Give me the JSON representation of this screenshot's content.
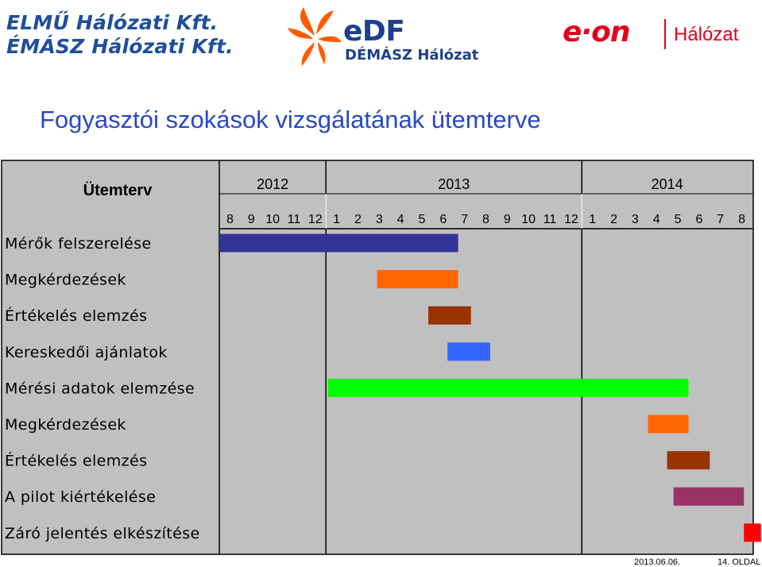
{
  "logos": {
    "elmu_line1": "ELMŰ Hálózati Kft.",
    "elmu_line2": "ÉMÁSZ Hálózati Kft.",
    "edf_name": "eDF",
    "edf_sub": "DÉMÁSZ Hálózat",
    "eon_name": "e·on",
    "eon_sub": "Hálózat"
  },
  "colors": {
    "title": "#2a47c4",
    "chart_bg": "#c0c0c0"
  },
  "chart_data": {
    "type": "gantt",
    "title": "Fogyasztói szokások vizsgálatának ütemterve",
    "row_header": "Ütemterv",
    "years": [
      {
        "label": "2012",
        "months": 5
      },
      {
        "label": "2013",
        "months": 12
      },
      {
        "label": "2014",
        "months": 8
      }
    ],
    "month_labels": [
      "8",
      "9",
      "10",
      "11",
      "12",
      "1",
      "2",
      "3",
      "4",
      "5",
      "6",
      "7",
      "8",
      "9",
      "10",
      "11",
      "12",
      "1",
      "2",
      "3",
      "4",
      "5",
      "6",
      "7",
      "8"
    ],
    "tasks": [
      {
        "label": "Mérők felszerelése",
        "start": 0,
        "end": 11.2,
        "color": "#333399"
      },
      {
        "label": "Megkérdezések",
        "start": 7.4,
        "end": 11.2,
        "color": "#ff6600"
      },
      {
        "label": "Értékelés elemzés",
        "start": 9.8,
        "end": 11.8,
        "color": "#993300"
      },
      {
        "label": "Kereskedői ajánlatok",
        "start": 10.7,
        "end": 12.7,
        "color": "#3366ff"
      },
      {
        "label": "Mérési adatok elemzése",
        "start": 5.1,
        "end": 22.0,
        "color": "#00ff00"
      },
      {
        "label": "Megkérdezések",
        "start": 20.1,
        "end": 22.0,
        "color": "#ff6600"
      },
      {
        "label": "Értékelés elemzés",
        "start": 21.0,
        "end": 23.0,
        "color": "#993300"
      },
      {
        "label": "A pilot kiértékelése",
        "start": 21.3,
        "end": 24.6,
        "color": "#993366"
      },
      {
        "label": "Záró jelentés elkészítése",
        "start": 24.6,
        "end": 25.4,
        "color": "#ff0000"
      }
    ]
  },
  "footer": {
    "date": "2013.06.06.",
    "page": "14. OLDAL"
  }
}
